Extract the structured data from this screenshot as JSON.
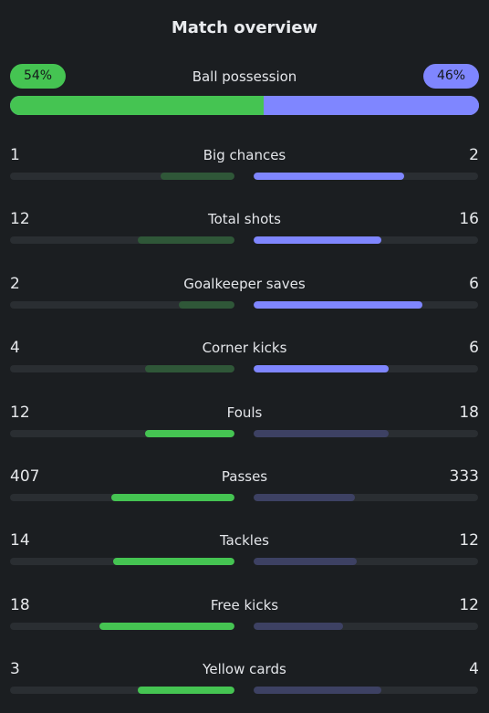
{
  "header": {
    "title": "Match overview"
  },
  "possession": {
    "label": "Ball possession",
    "home_text": "54%",
    "away_text": "46%",
    "home_fraction": 0.54
  },
  "colors": {
    "home_bright": "#45c452",
    "home_dim": "#2f5738",
    "away_bright": "#7f86ff",
    "away_dim": "#3d4163"
  },
  "stats": [
    {
      "label": "Big chances",
      "home": "1",
      "away": "2",
      "home_fraction": 0.33,
      "away_fraction": 0.67,
      "highlight": "away"
    },
    {
      "label": "Total shots",
      "home": "12",
      "away": "16",
      "home_fraction": 0.43,
      "away_fraction": 0.57,
      "highlight": "away"
    },
    {
      "label": "Goalkeeper saves",
      "home": "2",
      "away": "6",
      "home_fraction": 0.25,
      "away_fraction": 0.75,
      "highlight": "away"
    },
    {
      "label": "Corner kicks",
      "home": "4",
      "away": "6",
      "home_fraction": 0.4,
      "away_fraction": 0.6,
      "highlight": "away"
    },
    {
      "label": "Fouls",
      "home": "12",
      "away": "18",
      "home_fraction": 0.4,
      "away_fraction": 0.6,
      "highlight": "home"
    },
    {
      "label": "Passes",
      "home": "407",
      "away": "333",
      "home_fraction": 0.55,
      "away_fraction": 0.45,
      "highlight": "home"
    },
    {
      "label": "Tackles",
      "home": "14",
      "away": "12",
      "home_fraction": 0.54,
      "away_fraction": 0.46,
      "highlight": "home"
    },
    {
      "label": "Free kicks",
      "home": "18",
      "away": "12",
      "home_fraction": 0.6,
      "away_fraction": 0.4,
      "highlight": "home"
    },
    {
      "label": "Yellow cards",
      "home": "3",
      "away": "4",
      "home_fraction": 0.43,
      "away_fraction": 0.57,
      "highlight": "home"
    }
  ]
}
